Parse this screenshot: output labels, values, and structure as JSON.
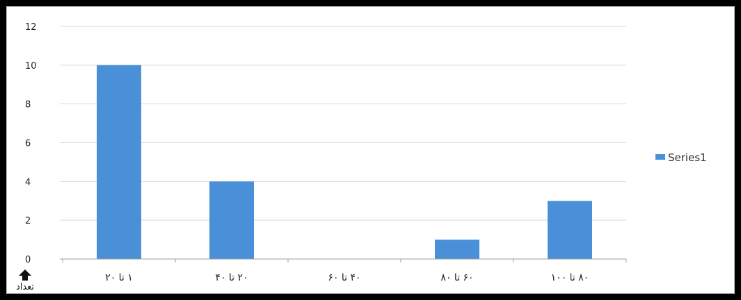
{
  "chart_data": {
    "type": "bar",
    "categories": [
      "۱ تا ۲۰",
      "۲۰ تا ۴۰",
      "۴۰ تا ۶۰",
      "۶۰ تا ۸۰",
      "۸۰ تا ۱۰۰"
    ],
    "series": [
      {
        "name": "Series1",
        "values": [
          10,
          4,
          0,
          1,
          3
        ]
      }
    ],
    "ylim": [
      0,
      12
    ],
    "yticks": [
      0,
      2,
      4,
      6,
      8,
      10,
      12
    ],
    "ylabel": "تعداد",
    "xlabel": "",
    "title": "",
    "grid": true,
    "legend": "right",
    "colors": {
      "bar": "#4a90d9",
      "grid": "#d9d9d9",
      "axis": "#9e9e9e"
    },
    "ylabel_icon": "up-arrow-icon"
  }
}
